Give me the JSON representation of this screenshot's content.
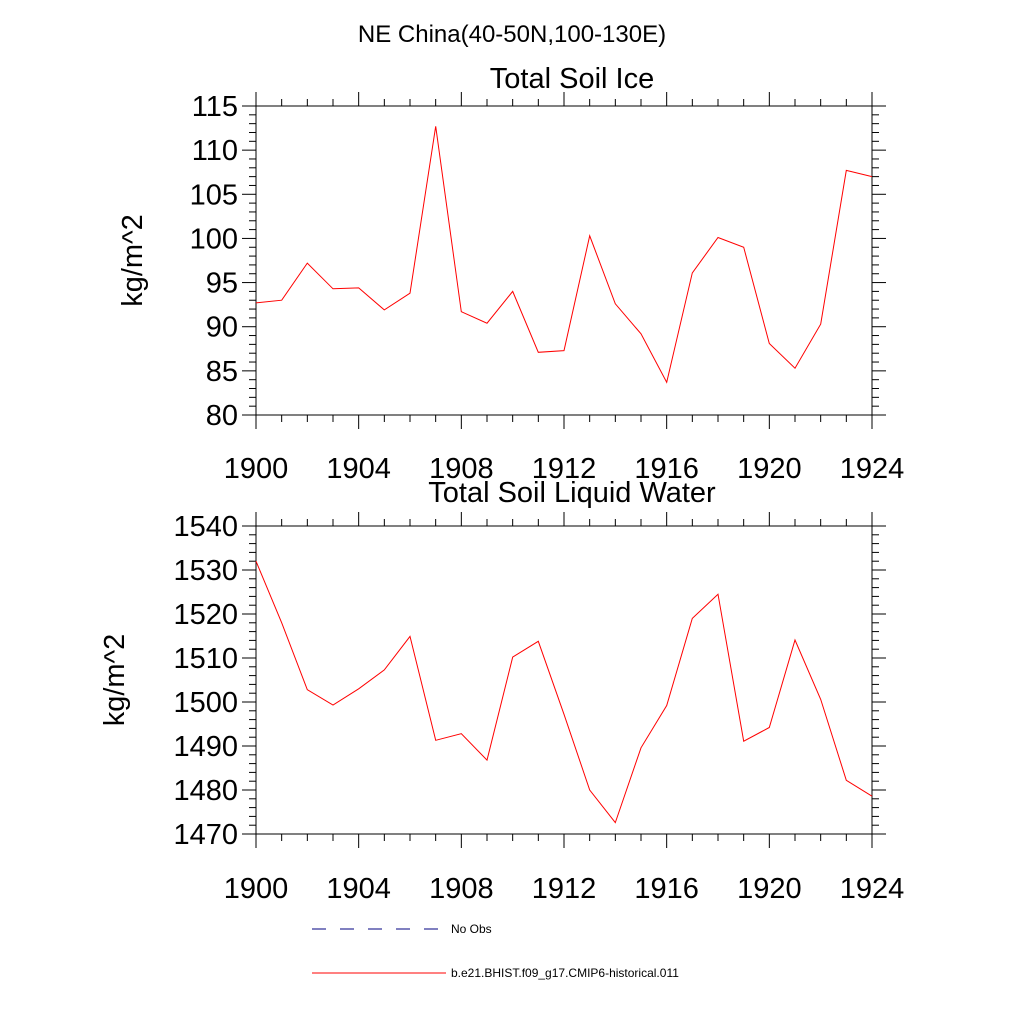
{
  "suptitle": "NE China(40-50N,100-130E)",
  "colors": {
    "model": "#ff0000",
    "obs": "#000080",
    "axis": "#000000"
  },
  "legend": [
    {
      "label": "No Obs",
      "style": "dashed",
      "color": "#000080"
    },
    {
      "label": "b.e21.BHIST.f09_g17.CMIP6-historical.011",
      "style": "solid",
      "color": "#ff0000"
    }
  ],
  "chart_data": [
    {
      "type": "line",
      "title": "Total Soil Ice",
      "xlabel": "",
      "ylabel": "kg/m^2",
      "xlim": [
        1900,
        1924
      ],
      "ylim": [
        80,
        115
      ],
      "xticks": [
        1900,
        1904,
        1908,
        1912,
        1916,
        1920,
        1924
      ],
      "yticks": [
        80,
        85,
        90,
        95,
        100,
        105,
        110,
        115
      ],
      "x": [
        1900,
        1901,
        1902,
        1903,
        1904,
        1905,
        1906,
        1907,
        1908,
        1909,
        1910,
        1911,
        1912,
        1913,
        1914,
        1915,
        1916,
        1917,
        1918,
        1919,
        1920,
        1921,
        1922,
        1923,
        1924
      ],
      "series": [
        {
          "values": [
            92.7,
            93.0,
            97.2,
            94.3,
            94.4,
            91.9,
            93.8,
            112.7,
            91.7,
            90.4,
            94.0,
            87.1,
            87.3,
            100.3,
            92.6,
            89.2,
            83.7,
            96.1,
            100.1,
            99.0,
            88.1,
            85.3,
            90.3,
            107.7,
            107.0
          ]
        }
      ],
      "grid": false
    },
    {
      "type": "line",
      "title": "Total Soil Liquid Water",
      "xlabel": "",
      "ylabel": "kg/m^2",
      "xlim": [
        1900,
        1924
      ],
      "ylim": [
        1470,
        1540
      ],
      "xticks": [
        1900,
        1904,
        1908,
        1912,
        1916,
        1920,
        1924
      ],
      "yticks": [
        1470,
        1480,
        1490,
        1500,
        1510,
        1520,
        1530,
        1540
      ],
      "x": [
        1900,
        1901,
        1902,
        1903,
        1904,
        1905,
        1906,
        1907,
        1908,
        1909,
        1910,
        1911,
        1912,
        1913,
        1914,
        1915,
        1916,
        1917,
        1918,
        1919,
        1920,
        1921,
        1922,
        1923,
        1924
      ],
      "series": [
        {
          "values": [
            1532.0,
            1518.0,
            1502.8,
            1499.3,
            1503.0,
            1507.3,
            1514.9,
            1491.3,
            1492.8,
            1486.8,
            1510.2,
            1513.8,
            1497.2,
            1480.0,
            1472.6,
            1489.6,
            1499.2,
            1519.0,
            1524.5,
            1491.1,
            1494.2,
            1514.1,
            1500.6,
            1482.2,
            1478.6
          ]
        }
      ],
      "grid": false
    }
  ]
}
